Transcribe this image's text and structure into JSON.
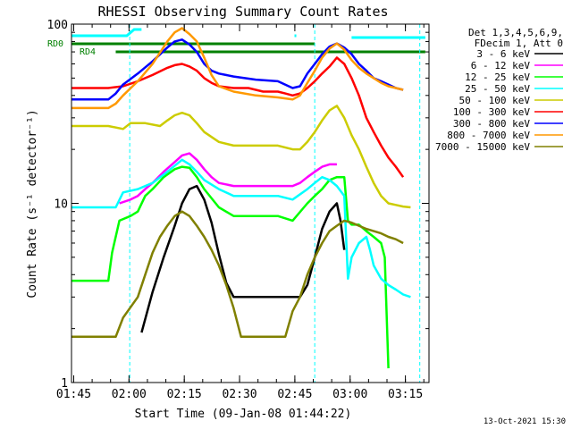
{
  "chart_data": {
    "type": "line",
    "title": "RHESSI Observing Summary Count Rates",
    "xlabel": "Start Time (09-Jan-08 01:44:22)",
    "ylabel": "Count Rate (s⁻¹ detector⁻¹)",
    "yscale": "log",
    "ylim": [
      1,
      100
    ],
    "xlim_minutes": [
      0,
      97
    ],
    "x_ticks": [
      {
        "label": "01:45",
        "t": 0.6
      },
      {
        "label": "02:00",
        "t": 15.6
      },
      {
        "label": "02:15",
        "t": 30.6
      },
      {
        "label": "02:30",
        "t": 45.6
      },
      {
        "label": "02:45",
        "t": 60.6
      },
      {
        "label": "03:00",
        "t": 75.6
      },
      {
        "label": "03:15",
        "t": 90.6
      }
    ],
    "y_ticks": [
      {
        "label": "1",
        "v": 1
      },
      {
        "label": "10",
        "v": 10
      },
      {
        "label": "100",
        "v": 100
      }
    ],
    "legend_header": [
      "Det 1,3,4,5,6,9,",
      "FDecim 1, Att 0"
    ],
    "legend_position": "right",
    "series": [
      {
        "name": "3 - 6 keV",
        "color": "#000000",
        "points": [
          [
            0,
            null
          ],
          [
            18,
            null
          ],
          [
            19,
            1.9
          ],
          [
            22,
            3.2
          ],
          [
            25,
            5
          ],
          [
            28,
            7.5
          ],
          [
            30,
            10
          ],
          [
            32,
            12
          ],
          [
            34,
            12.5
          ],
          [
            36,
            10.5
          ],
          [
            38,
            7.8
          ],
          [
            40,
            5.2
          ],
          [
            42,
            3.6
          ],
          [
            44,
            3
          ],
          [
            46,
            3
          ],
          [
            60,
            3
          ],
          [
            62,
            3
          ],
          [
            64,
            3.5
          ],
          [
            66,
            5
          ],
          [
            68,
            7.2
          ],
          [
            70,
            9
          ],
          [
            72,
            10
          ],
          [
            73,
            8
          ],
          [
            74,
            5.5
          ]
        ]
      },
      {
        "name": "6 - 12 keV",
        "color": "#ff00ff",
        "points": [
          [
            12,
            null
          ],
          [
            13,
            10
          ],
          [
            16,
            10.5
          ],
          [
            18,
            11
          ],
          [
            20,
            12
          ],
          [
            22,
            13
          ],
          [
            25,
            15
          ],
          [
            28,
            17
          ],
          [
            30,
            18.5
          ],
          [
            32,
            19
          ],
          [
            34,
            17.5
          ],
          [
            36,
            15.5
          ],
          [
            38,
            14
          ],
          [
            40,
            13
          ],
          [
            44,
            12.5
          ],
          [
            50,
            12.5
          ],
          [
            56,
            12.5
          ],
          [
            60,
            12.5
          ],
          [
            62,
            13
          ],
          [
            64,
            14
          ],
          [
            66,
            15
          ],
          [
            68,
            16
          ],
          [
            70,
            16.5
          ],
          [
            72,
            16.5
          ]
        ]
      },
      {
        "name": "12 - 25 keV",
        "color": "#00ff00",
        "points": [
          [
            0,
            3.7
          ],
          [
            10,
            3.7
          ],
          [
            11,
            5.3
          ],
          [
            13,
            8
          ],
          [
            16,
            8.5
          ],
          [
            18,
            9
          ],
          [
            20,
            11
          ],
          [
            22,
            12
          ],
          [
            25,
            14
          ],
          [
            28,
            15.5
          ],
          [
            30,
            16
          ],
          [
            32,
            15.8
          ],
          [
            34,
            14
          ],
          [
            36,
            12
          ],
          [
            40,
            9.5
          ],
          [
            44,
            8.5
          ],
          [
            56,
            8.5
          ],
          [
            60,
            8
          ],
          [
            64,
            10
          ],
          [
            66,
            11
          ],
          [
            68,
            12
          ],
          [
            70,
            13.5
          ],
          [
            72,
            14
          ],
          [
            74,
            14
          ],
          [
            75,
            8
          ],
          [
            76,
            7.6
          ],
          [
            78,
            7.6
          ],
          [
            80,
            7
          ],
          [
            82,
            6.5
          ],
          [
            84,
            6
          ],
          [
            85,
            5
          ],
          [
            86,
            1.2
          ]
        ]
      },
      {
        "name": "25 - 50 keV",
        "color": "#00ffff",
        "points": [
          [
            0,
            9.5
          ],
          [
            12,
            9.5
          ],
          [
            14,
            11.5
          ],
          [
            18,
            12
          ],
          [
            22,
            13
          ],
          [
            26,
            15
          ],
          [
            30,
            17.5
          ],
          [
            32,
            16.5
          ],
          [
            34,
            15
          ],
          [
            36,
            13.5
          ],
          [
            40,
            12
          ],
          [
            44,
            11
          ],
          [
            50,
            11
          ],
          [
            56,
            11
          ],
          [
            60,
            10.5
          ],
          [
            64,
            12
          ],
          [
            66,
            13
          ],
          [
            68,
            14
          ],
          [
            70,
            13.5
          ],
          [
            72,
            12.5
          ],
          [
            74,
            11
          ],
          [
            75,
            3.8
          ],
          [
            76,
            5
          ],
          [
            78,
            6
          ],
          [
            80,
            6.5
          ],
          [
            81,
            5.5
          ],
          [
            82,
            4.5
          ],
          [
            84,
            3.8
          ],
          [
            86,
            3.5
          ],
          [
            88,
            3.3
          ],
          [
            90,
            3.1
          ],
          [
            92,
            3
          ]
        ]
      },
      {
        "name": "50 - 100 keV",
        "color": "#cccc00",
        "points": [
          [
            0,
            27
          ],
          [
            10,
            27
          ],
          [
            14,
            26
          ],
          [
            16,
            28
          ],
          [
            20,
            28
          ],
          [
            24,
            27
          ],
          [
            26,
            29
          ],
          [
            28,
            31
          ],
          [
            30,
            32
          ],
          [
            32,
            31
          ],
          [
            34,
            28
          ],
          [
            36,
            25
          ],
          [
            40,
            22
          ],
          [
            44,
            21
          ],
          [
            56,
            21
          ],
          [
            60,
            20
          ],
          [
            62,
            20
          ],
          [
            64,
            22
          ],
          [
            66,
            25
          ],
          [
            68,
            29
          ],
          [
            70,
            33
          ],
          [
            72,
            35
          ],
          [
            74,
            30
          ],
          [
            76,
            24
          ],
          [
            78,
            20
          ],
          [
            80,
            16
          ],
          [
            82,
            13
          ],
          [
            84,
            11
          ],
          [
            86,
            10
          ],
          [
            88,
            9.8
          ],
          [
            90,
            9.6
          ],
          [
            92,
            9.5
          ]
        ]
      },
      {
        "name": "100 - 300 keV",
        "color": "#ff0000",
        "points": [
          [
            0,
            44
          ],
          [
            10,
            44
          ],
          [
            14,
            45
          ],
          [
            18,
            48
          ],
          [
            22,
            52
          ],
          [
            26,
            57
          ],
          [
            28,
            59
          ],
          [
            30,
            60
          ],
          [
            32,
            58
          ],
          [
            34,
            55
          ],
          [
            36,
            50
          ],
          [
            38,
            47
          ],
          [
            40,
            45
          ],
          [
            44,
            44
          ],
          [
            48,
            44
          ],
          [
            50,
            43
          ],
          [
            52,
            42
          ],
          [
            54,
            42
          ],
          [
            56,
            42
          ],
          [
            58,
            41
          ],
          [
            60,
            40
          ],
          [
            62,
            41
          ],
          [
            64,
            44
          ],
          [
            66,
            48
          ],
          [
            68,
            53
          ],
          [
            70,
            58
          ],
          [
            72,
            65
          ],
          [
            74,
            60
          ],
          [
            76,
            50
          ],
          [
            78,
            40
          ],
          [
            80,
            30
          ],
          [
            82,
            25
          ],
          [
            84,
            21
          ],
          [
            86,
            18
          ],
          [
            88,
            16
          ],
          [
            90,
            14
          ]
        ]
      },
      {
        "name": "300 - 800 keV",
        "color": "#0000ff",
        "points": [
          [
            0,
            38
          ],
          [
            10,
            38
          ],
          [
            12,
            41
          ],
          [
            14,
            46
          ],
          [
            18,
            53
          ],
          [
            22,
            62
          ],
          [
            26,
            74
          ],
          [
            28,
            80
          ],
          [
            30,
            82
          ],
          [
            32,
            77
          ],
          [
            34,
            70
          ],
          [
            36,
            60
          ],
          [
            38,
            55
          ],
          [
            40,
            53
          ],
          [
            44,
            51
          ],
          [
            50,
            49
          ],
          [
            56,
            48
          ],
          [
            60,
            44
          ],
          [
            62,
            45
          ],
          [
            64,
            53
          ],
          [
            66,
            60
          ],
          [
            68,
            68
          ],
          [
            70,
            75
          ],
          [
            72,
            78
          ],
          [
            74,
            74
          ],
          [
            76,
            68
          ],
          [
            78,
            60
          ],
          [
            80,
            55
          ],
          [
            82,
            50
          ],
          [
            84,
            48
          ],
          [
            86,
            46
          ],
          [
            88,
            44
          ],
          [
            90,
            43
          ]
        ]
      },
      {
        "name": "800 - 7000 keV",
        "color": "#ff9900",
        "points": [
          [
            0,
            34
          ],
          [
            10,
            34
          ],
          [
            12,
            36
          ],
          [
            14,
            40
          ],
          [
            18,
            48
          ],
          [
            22,
            60
          ],
          [
            26,
            80
          ],
          [
            28,
            90
          ],
          [
            30,
            95
          ],
          [
            32,
            88
          ],
          [
            34,
            80
          ],
          [
            36,
            65
          ],
          [
            38,
            52
          ],
          [
            40,
            45
          ],
          [
            44,
            42
          ],
          [
            50,
            40
          ],
          [
            56,
            39
          ],
          [
            60,
            38
          ],
          [
            62,
            40
          ],
          [
            64,
            47
          ],
          [
            66,
            55
          ],
          [
            68,
            65
          ],
          [
            70,
            73
          ],
          [
            72,
            78
          ],
          [
            74,
            72
          ],
          [
            76,
            63
          ],
          [
            78,
            57
          ],
          [
            80,
            53
          ],
          [
            82,
            50
          ],
          [
            84,
            47
          ],
          [
            86,
            45
          ],
          [
            88,
            44
          ],
          [
            90,
            43
          ]
        ]
      },
      {
        "name": "7000 - 15000 keV",
        "color": "#808000",
        "points": [
          [
            0,
            1.8
          ],
          [
            12,
            1.8
          ],
          [
            14,
            2.3
          ],
          [
            18,
            3
          ],
          [
            20,
            4
          ],
          [
            22,
            5.3
          ],
          [
            24,
            6.5
          ],
          [
            26,
            7.5
          ],
          [
            28,
            8.5
          ],
          [
            30,
            9
          ],
          [
            32,
            8.5
          ],
          [
            34,
            7.5
          ],
          [
            36,
            6.5
          ],
          [
            38,
            5.5
          ],
          [
            40,
            4.5
          ],
          [
            42,
            3.5
          ],
          [
            44,
            2.6
          ],
          [
            46,
            1.8
          ],
          [
            58,
            1.8
          ],
          [
            60,
            2.5
          ],
          [
            62,
            3
          ],
          [
            64,
            4
          ],
          [
            66,
            5
          ],
          [
            68,
            6
          ],
          [
            70,
            7
          ],
          [
            72,
            7.5
          ],
          [
            74,
            8
          ],
          [
            76,
            7.8
          ],
          [
            78,
            7.5
          ],
          [
            80,
            7.2
          ],
          [
            82,
            7
          ],
          [
            84,
            6.8
          ],
          [
            86,
            6.5
          ],
          [
            88,
            6.3
          ],
          [
            90,
            6
          ]
        ]
      }
    ],
    "annotations": [
      {
        "label": "RD0",
        "color": "#008000"
      },
      {
        "label": "RD4",
        "color": "#008000"
      }
    ],
    "footer_date": "13-Oct-2021 15:30"
  }
}
